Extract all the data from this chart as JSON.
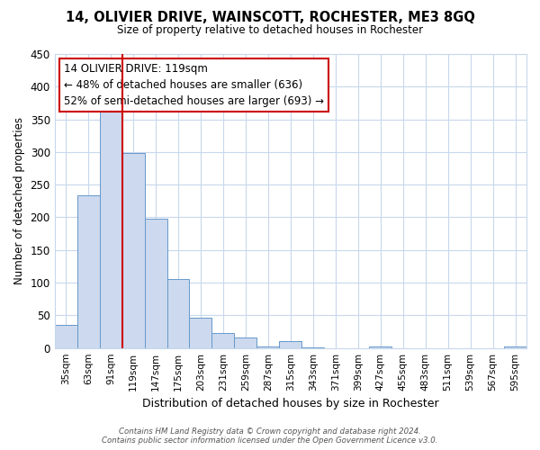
{
  "title": "14, OLIVIER DRIVE, WAINSCOTT, ROCHESTER, ME3 8GQ",
  "subtitle": "Size of property relative to detached houses in Rochester",
  "xlabel": "Distribution of detached houses by size in Rochester",
  "ylabel": "Number of detached properties",
  "bar_color": "#ccd9ee",
  "bar_edge_color": "#6699cc",
  "vline_color": "#cc0000",
  "vline_x": 2.5,
  "categories": [
    "35sqm",
    "63sqm",
    "91sqm",
    "119sqm",
    "147sqm",
    "175sqm",
    "203sqm",
    "231sqm",
    "259sqm",
    "287sqm",
    "315sqm",
    "343sqm",
    "371sqm",
    "399sqm",
    "427sqm",
    "455sqm",
    "483sqm",
    "511sqm",
    "539sqm",
    "567sqm",
    "595sqm"
  ],
  "values": [
    35,
    234,
    370,
    298,
    198,
    106,
    47,
    23,
    16,
    3,
    10,
    1,
    0,
    0,
    2,
    0,
    0,
    0,
    0,
    0,
    2
  ],
  "ylim": [
    0,
    450
  ],
  "yticks": [
    0,
    50,
    100,
    150,
    200,
    250,
    300,
    350,
    400,
    450
  ],
  "annotation_title": "14 OLIVIER DRIVE: 119sqm",
  "annotation_line2": "← 48% of detached houses are smaller (636)",
  "annotation_line3": "52% of semi-detached houses are larger (693) →",
  "footer_line1": "Contains HM Land Registry data © Crown copyright and database right 2024.",
  "footer_line2": "Contains public sector information licensed under the Open Government Licence v3.0.",
  "background_color": "#ffffff",
  "grid_color": "#c8d8ec"
}
